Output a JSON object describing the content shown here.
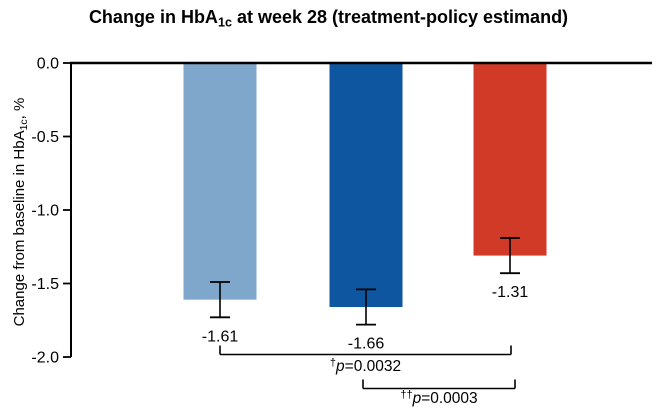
{
  "title": {
    "pre": "Change in HbA",
    "sub": "1c",
    "post": " at week 28 (treatment-policy estimand)"
  },
  "y_axis": {
    "label_pre": "Change from baseline in HbA",
    "label_sub": "1c",
    "label_post": ", %"
  },
  "chart_data": {
    "type": "bar",
    "title": "Change in HbA1c at week 28 (treatment-policy estimand)",
    "ylabel": "Change from baseline in HbA1c, %",
    "xlabel": "",
    "ylim": [
      0.0,
      -2.0
    ],
    "yticks": [
      0.0,
      -0.5,
      -1.0,
      -1.5,
      -2.0
    ],
    "ytick_labels": [
      "0.0",
      "-0.5",
      "-1.0",
      "-1.5",
      "-2.0"
    ],
    "grid": false,
    "legend": false,
    "bar_colors": [
      "#7FA7CC",
      "#0F56A0",
      "#D23A28"
    ],
    "bars": [
      {
        "value": -1.61,
        "label": "-1.61",
        "error": 0.12,
        "color": "#7FA7CC"
      },
      {
        "value": -1.66,
        "label": "-1.66",
        "error": 0.12,
        "color": "#0F56A0"
      },
      {
        "value": -1.31,
        "label": "-1.31",
        "error": 0.12,
        "color": "#D23A28"
      }
    ],
    "comparisons": [
      {
        "from_bar": 0,
        "to_bar": 2,
        "dagger": "†",
        "label": "p=0.0032"
      },
      {
        "from_bar": 1,
        "to_bar": 2,
        "dagger": "††",
        "label": "p=0.0003"
      }
    ]
  }
}
